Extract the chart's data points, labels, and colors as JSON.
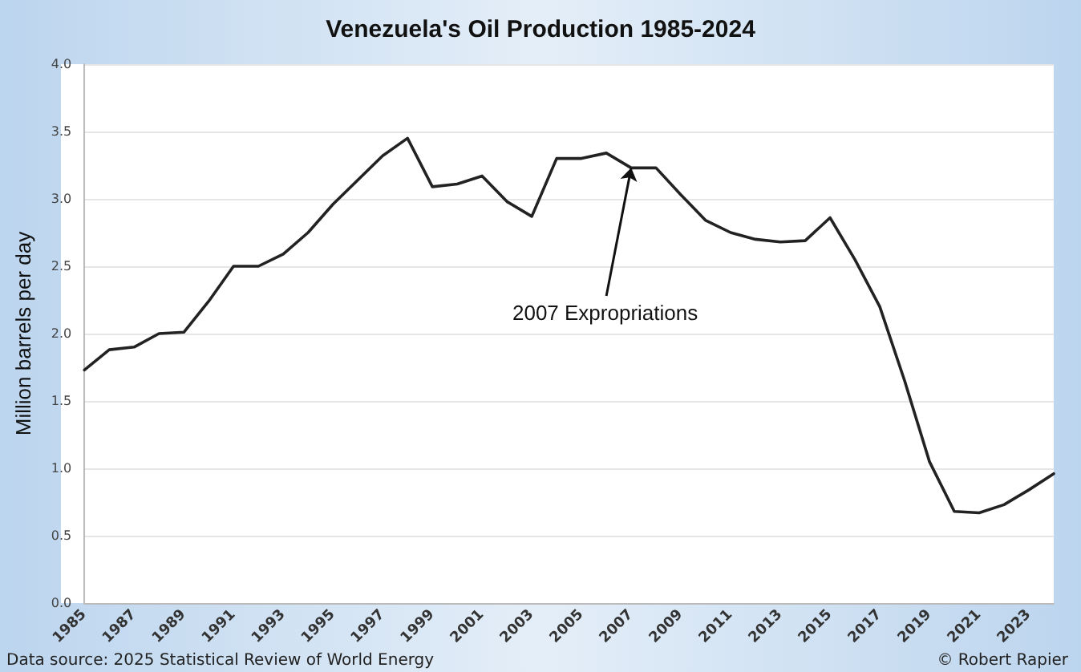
{
  "chart_data": {
    "type": "line",
    "title": "Venezuela's Oil Production 1985-2024",
    "ylabel": "Million barrels per day",
    "categories": [
      "1985",
      null,
      "1987",
      null,
      "1989",
      null,
      "1991",
      null,
      "1993",
      null,
      "1995",
      null,
      "1997",
      null,
      "1999",
      null,
      "2001",
      null,
      "2003",
      null,
      "2005",
      null,
      "2007",
      null,
      "2009",
      null,
      "2011",
      null,
      "2013",
      null,
      "2015",
      null,
      "2017",
      null,
      "2019",
      null,
      "2021",
      null,
      "2023",
      null
    ],
    "series": [
      {
        "color": "#222222",
        "values": [
          1.73,
          1.88,
          1.9,
          2.0,
          2.01,
          2.24,
          2.5,
          2.5,
          2.59,
          2.75,
          2.96,
          3.14,
          3.32,
          3.45,
          3.09,
          3.11,
          3.17,
          2.98,
          2.87,
          3.3,
          3.3,
          3.34,
          3.23,
          3.23,
          3.03,
          2.84,
          2.75,
          2.7,
          2.68,
          2.69,
          2.86,
          2.55,
          2.2,
          1.65,
          1.05,
          0.68,
          0.67,
          0.73,
          0.84,
          0.96
        ]
      }
    ],
    "ylim": [
      0,
      4
    ],
    "yticks": [
      {
        "value": 0,
        "label": "0.0"
      },
      {
        "value": 0.5,
        "label": "0.5"
      },
      {
        "value": 1,
        "label": "1.0"
      },
      {
        "value": 1.5,
        "label": "1.5"
      },
      {
        "value": 2,
        "label": "2.0"
      },
      {
        "value": 2.5,
        "label": "2.5"
      },
      {
        "value": 3,
        "label": "3.0"
      },
      {
        "value": 3.5,
        "label": "3.5"
      },
      {
        "value": 4,
        "label": "4.0"
      }
    ],
    "grid": "y",
    "marker": "none",
    "line_style": "solid",
    "annotations": [
      {
        "text": "2007 Expropriations",
        "x": "2007",
        "y": 3.23
      },
      "Data source: 2025 Statistical Review of World Energy",
      "© Robert Rapier"
    ]
  }
}
